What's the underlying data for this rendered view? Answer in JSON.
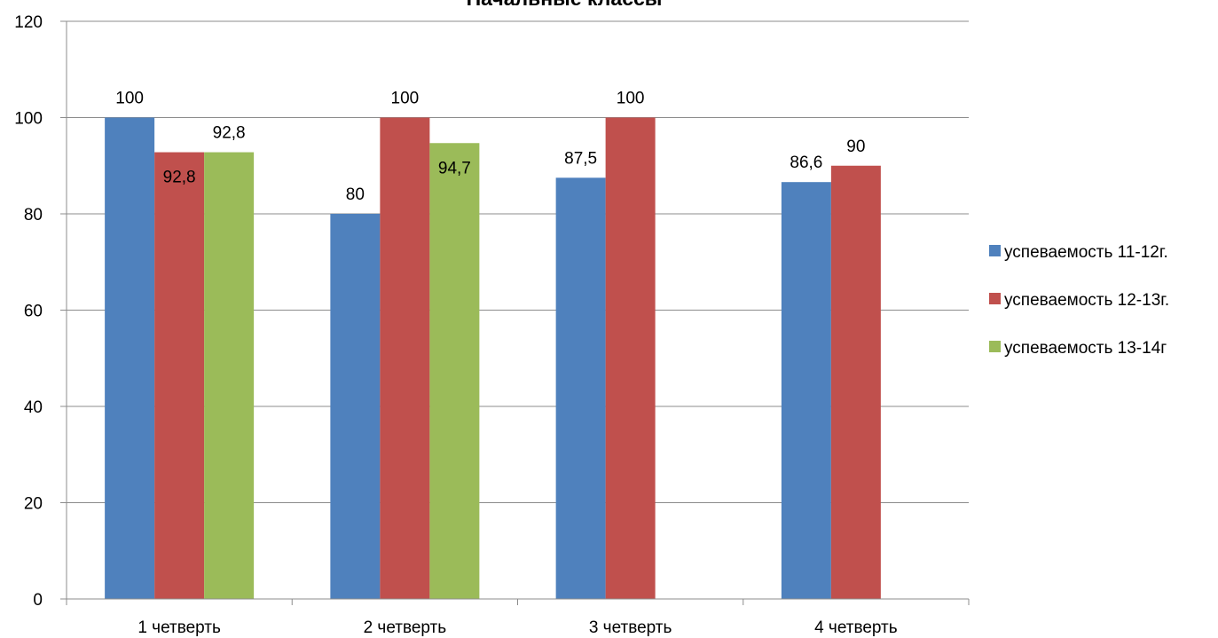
{
  "chart_data": {
    "type": "bar",
    "title": "Начальные классы",
    "categories": [
      "1 четверть",
      "2 четверть",
      "3 четверть",
      "4 четверть"
    ],
    "series": [
      {
        "name": "успеваемость 11-12г.",
        "color": "#4F81BD",
        "values": [
          100,
          80,
          87.5,
          86.6
        ],
        "labels": [
          "100",
          "80",
          "87,5",
          "86,6"
        ]
      },
      {
        "name": "успеваемость 12-13г.",
        "color": "#C0504D",
        "values": [
          92.8,
          100,
          100,
          90
        ],
        "labels": [
          "92,8",
          "100",
          "100",
          "90"
        ]
      },
      {
        "name": "успеваемость 13-14г",
        "color": "#9BBB59",
        "values": [
          92.8,
          94.7,
          null,
          null
        ],
        "labels": [
          "92,8",
          "94,7",
          "",
          ""
        ]
      }
    ],
    "yticks": [
      "0",
      "20",
      "40",
      "60",
      "80",
      "100",
      "120"
    ],
    "ylim": [
      0,
      120
    ],
    "grid": true,
    "legend_position": "right"
  }
}
